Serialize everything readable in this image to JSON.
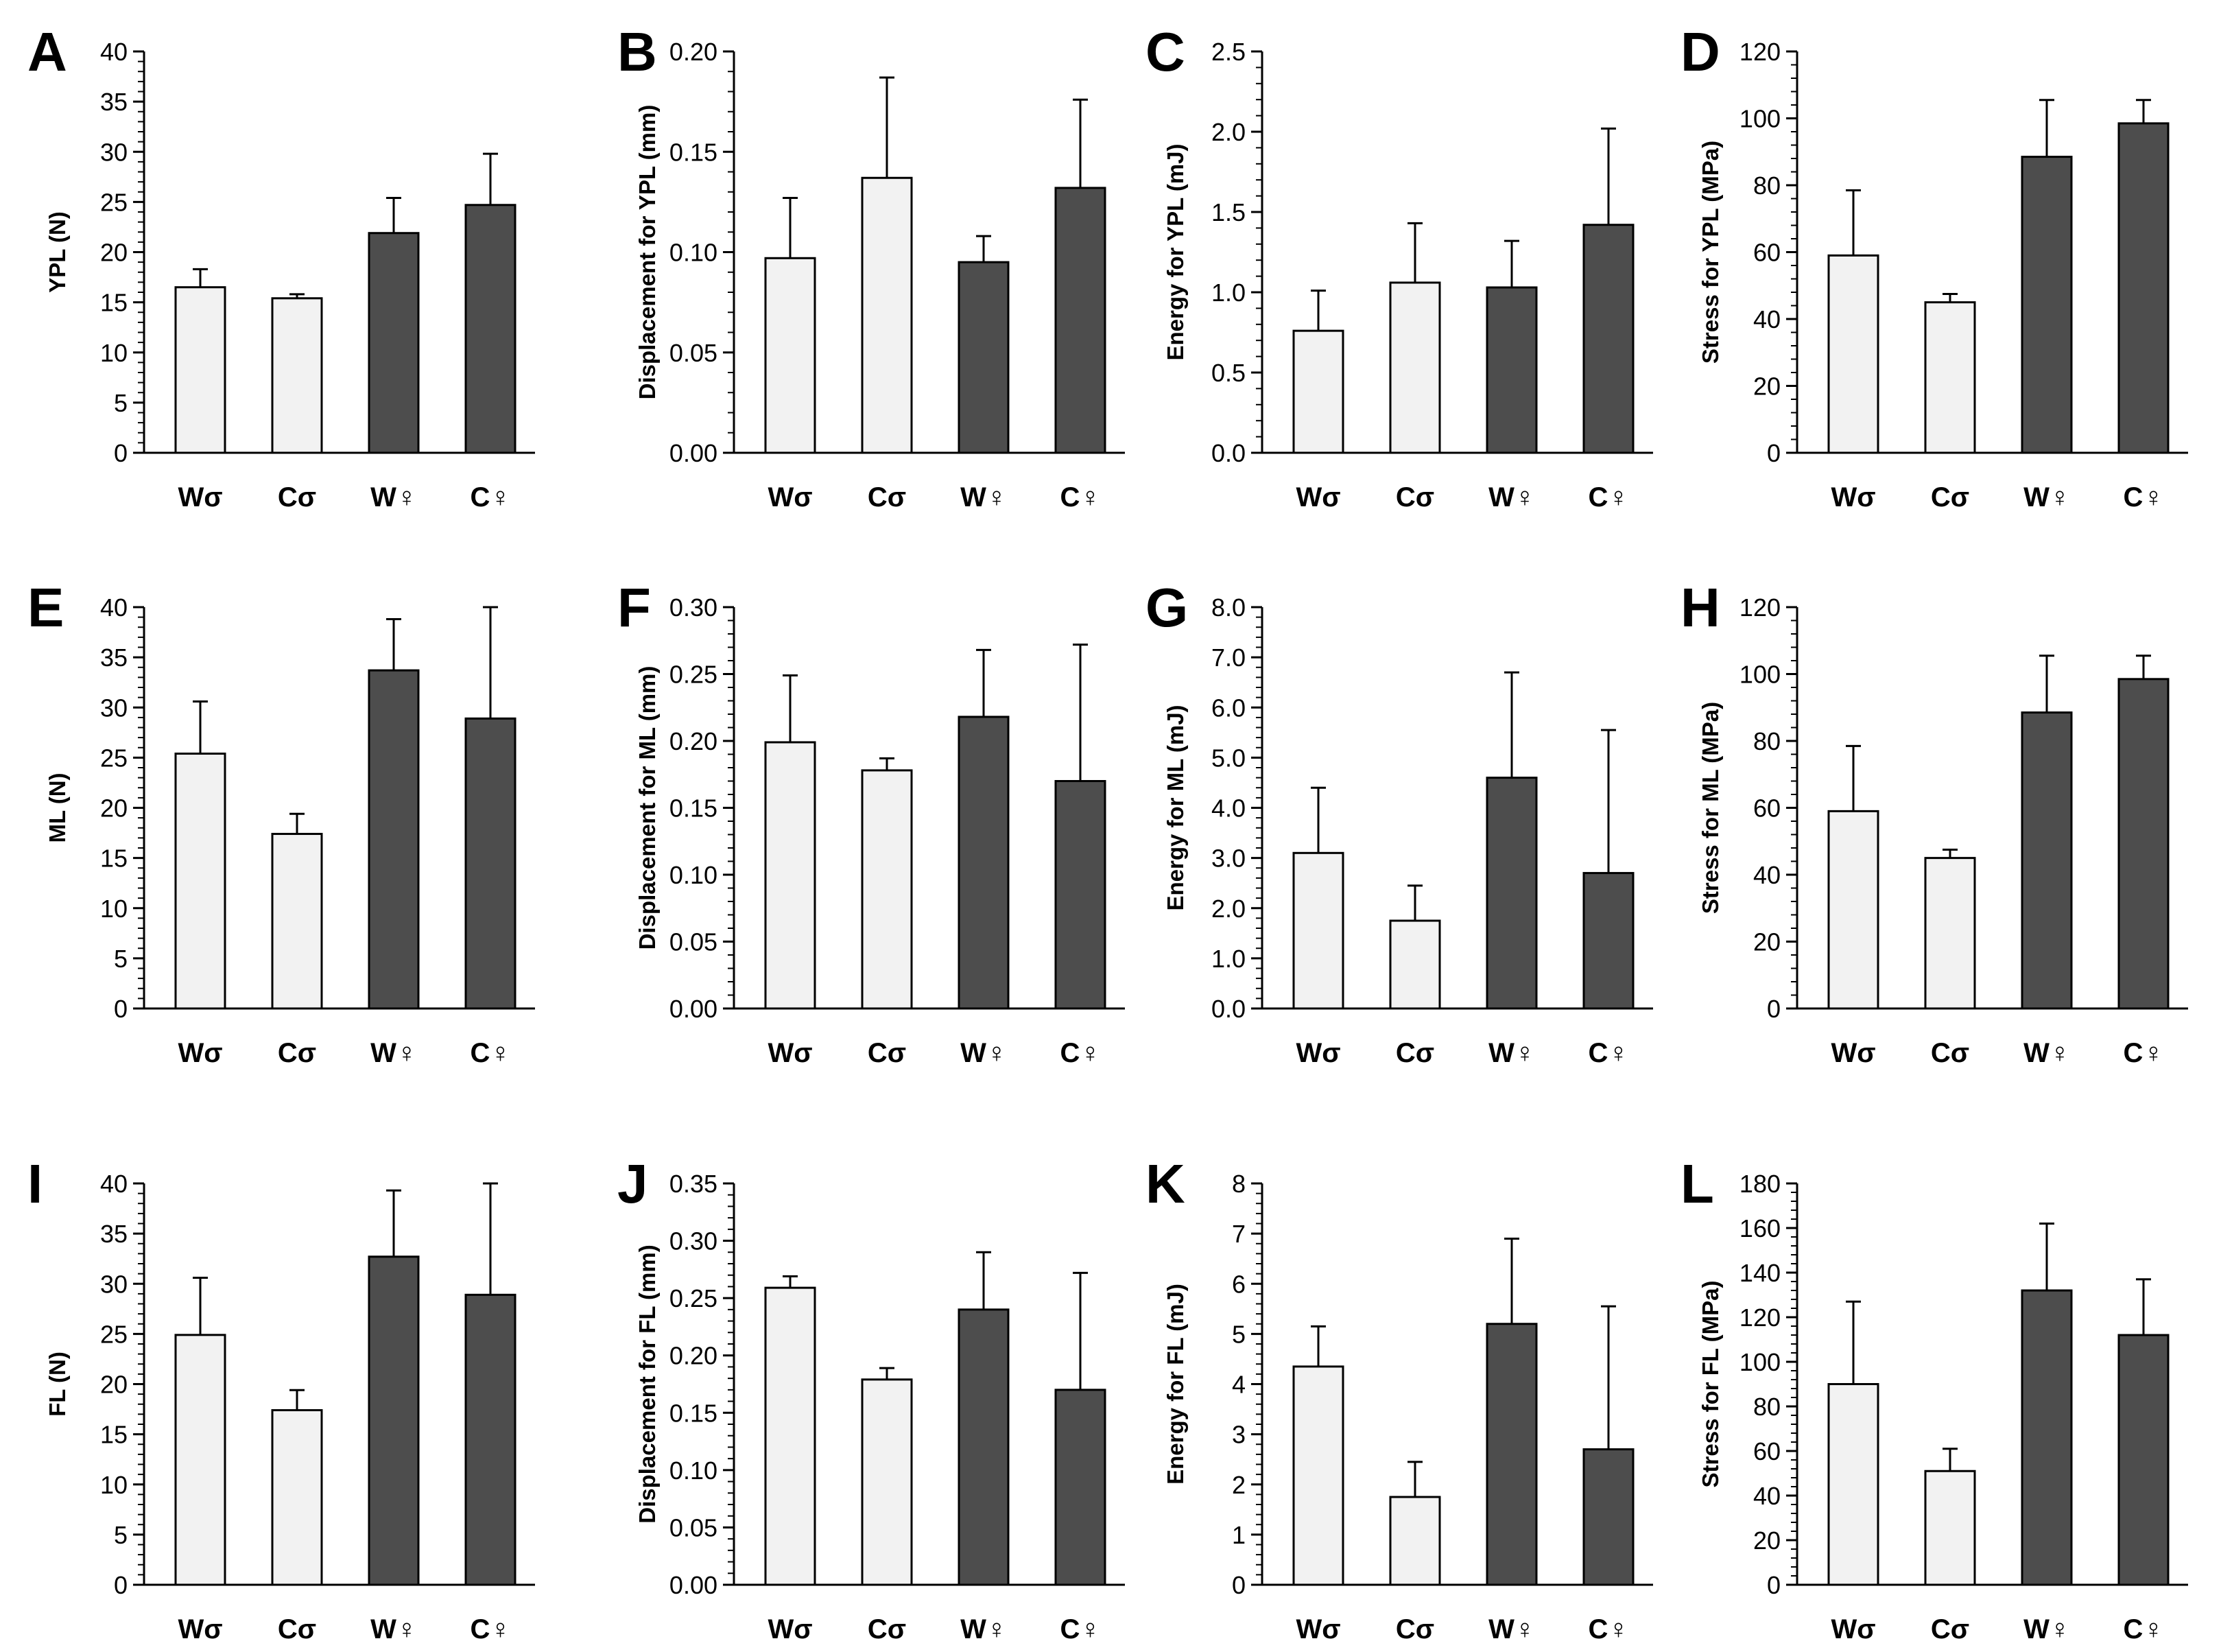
{
  "colors": {
    "male": "#f2f2f2",
    "female": "#4d4d4d",
    "stroke": "#000000"
  },
  "chart_data": [
    {
      "panel": "A",
      "type": "bar",
      "categories": [
        "Wσ",
        "Cσ",
        "W♀",
        "C♀"
      ],
      "values": [
        16.5,
        15.4,
        21.9,
        24.7
      ],
      "errors": [
        1.8,
        0.4,
        3.5,
        5.1
      ],
      "ylabel": "YPL (N)",
      "ylim": [
        0,
        40
      ],
      "yticks": [
        "0",
        "5",
        "10",
        "15",
        "20",
        "25",
        "30",
        "35",
        "40"
      ]
    },
    {
      "panel": "B",
      "type": "bar",
      "categories": [
        "Wσ",
        "Cσ",
        "W♀",
        "C♀"
      ],
      "values": [
        0.097,
        0.137,
        0.095,
        0.132
      ],
      "errors": [
        0.03,
        0.05,
        0.013,
        0.044
      ],
      "ylabel": "Displacement for YPL (mm)",
      "ylim": [
        0,
        0.2
      ],
      "yticks": [
        "0.00",
        "0.05",
        "0.10",
        "0.15",
        "0.20"
      ]
    },
    {
      "panel": "C",
      "type": "bar",
      "categories": [
        "Wσ",
        "Cσ",
        "W♀",
        "C♀"
      ],
      "values": [
        0.76,
        1.06,
        1.03,
        1.42
      ],
      "errors": [
        0.25,
        0.37,
        0.29,
        0.6
      ],
      "ylabel": "Energy for YPL (mJ)",
      "ylim": [
        0,
        2.5
      ],
      "yticks": [
        "0.0",
        "0.5",
        "1.0",
        "1.5",
        "2.0",
        "2.5"
      ]
    },
    {
      "panel": "D",
      "type": "bar",
      "categories": [
        "Wσ",
        "Cσ",
        "W♀",
        "C♀"
      ],
      "values": [
        59,
        45,
        88.5,
        98.5
      ],
      "errors": [
        19.5,
        2.5,
        17,
        7
      ],
      "ylabel": "Stress for YPL (MPa)",
      "ylim": [
        0,
        120
      ],
      "yticks": [
        "0",
        "20",
        "40",
        "60",
        "80",
        "100",
        "120"
      ]
    },
    {
      "panel": "E",
      "type": "bar",
      "categories": [
        "Wσ",
        "Cσ",
        "W♀",
        "C♀"
      ],
      "values": [
        25.4,
        17.4,
        33.7,
        28.9
      ],
      "errors": [
        5.2,
        2.0,
        5.1,
        11.1
      ],
      "ylabel": "ML (N)",
      "ylim": [
        0,
        40
      ],
      "yticks": [
        "0",
        "5",
        "10",
        "15",
        "20",
        "25",
        "30",
        "35",
        "40"
      ]
    },
    {
      "panel": "F",
      "type": "bar",
      "categories": [
        "Wσ",
        "Cσ",
        "W♀",
        "C♀"
      ],
      "values": [
        0.199,
        0.178,
        0.218,
        0.17
      ],
      "errors": [
        0.05,
        0.009,
        0.05,
        0.102
      ],
      "ylabel": "Displacement for ML (mm)",
      "ylim": [
        0,
        0.3
      ],
      "yticks": [
        "0.00",
        "0.05",
        "0.10",
        "0.15",
        "0.20",
        "0.25",
        "0.30"
      ]
    },
    {
      "panel": "G",
      "type": "bar",
      "categories": [
        "Wσ",
        "Cσ",
        "W♀",
        "C♀"
      ],
      "values": [
        3.1,
        1.75,
        4.6,
        2.7
      ],
      "errors": [
        1.3,
        0.7,
        2.1,
        2.85
      ],
      "ylabel": "Energy for ML (mJ)",
      "ylim": [
        0,
        8
      ],
      "yticks": [
        "0.0",
        "1.0",
        "2.0",
        "3.0",
        "4.0",
        "5.0",
        "6.0",
        "7.0",
        "8.0"
      ]
    },
    {
      "panel": "H",
      "type": "bar",
      "categories": [
        "Wσ",
        "Cσ",
        "W♀",
        "C♀"
      ],
      "values": [
        59,
        45,
        88.5,
        98.5
      ],
      "errors": [
        19.5,
        2.5,
        17,
        7
      ],
      "ylabel": "Stress for ML (MPa)",
      "ylim": [
        0,
        120
      ],
      "yticks": [
        "0",
        "20",
        "40",
        "60",
        "80",
        "100",
        "120"
      ]
    },
    {
      "panel": "I",
      "type": "bar",
      "categories": [
        "Wσ",
        "Cσ",
        "W♀",
        "C♀"
      ],
      "values": [
        24.9,
        17.4,
        32.7,
        28.9
      ],
      "errors": [
        5.7,
        2.0,
        6.6,
        11.1
      ],
      "ylabel": "FL (N)",
      "ylim": [
        0,
        40
      ],
      "yticks": [
        "0",
        "5",
        "10",
        "15",
        "20",
        "25",
        "30",
        "35",
        "40"
      ]
    },
    {
      "panel": "J",
      "type": "bar",
      "categories": [
        "Wσ",
        "Cσ",
        "W♀",
        "C♀"
      ],
      "values": [
        0.259,
        0.179,
        0.24,
        0.17
      ],
      "errors": [
        0.01,
        0.01,
        0.05,
        0.102
      ],
      "ylabel": "Displacement for FL (mm)",
      "ylim": [
        0,
        0.35
      ],
      "yticks": [
        "0.00",
        "0.05",
        "0.10",
        "0.15",
        "0.20",
        "0.25",
        "0.30",
        "0.35"
      ]
    },
    {
      "panel": "K",
      "type": "bar",
      "categories": [
        "Wσ",
        "Cσ",
        "W♀",
        "C♀"
      ],
      "values": [
        4.35,
        1.75,
        5.2,
        2.7
      ],
      "errors": [
        0.8,
        0.7,
        1.7,
        2.85
      ],
      "ylabel": "Energy for FL (mJ)",
      "ylim": [
        0,
        8
      ],
      "yticks": [
        "0",
        "1",
        "2",
        "3",
        "4",
        "5",
        "6",
        "7",
        "8"
      ]
    },
    {
      "panel": "L",
      "type": "bar",
      "categories": [
        "Wσ",
        "Cσ",
        "W♀",
        "C♀"
      ],
      "values": [
        90,
        51,
        132,
        112
      ],
      "errors": [
        37,
        10,
        30,
        25
      ],
      "ylabel": "Stress for FL (MPa)",
      "ylim": [
        0,
        180
      ],
      "yticks": [
        "0",
        "20",
        "40",
        "60",
        "80",
        "100",
        "120",
        "140",
        "160",
        "180"
      ]
    }
  ]
}
